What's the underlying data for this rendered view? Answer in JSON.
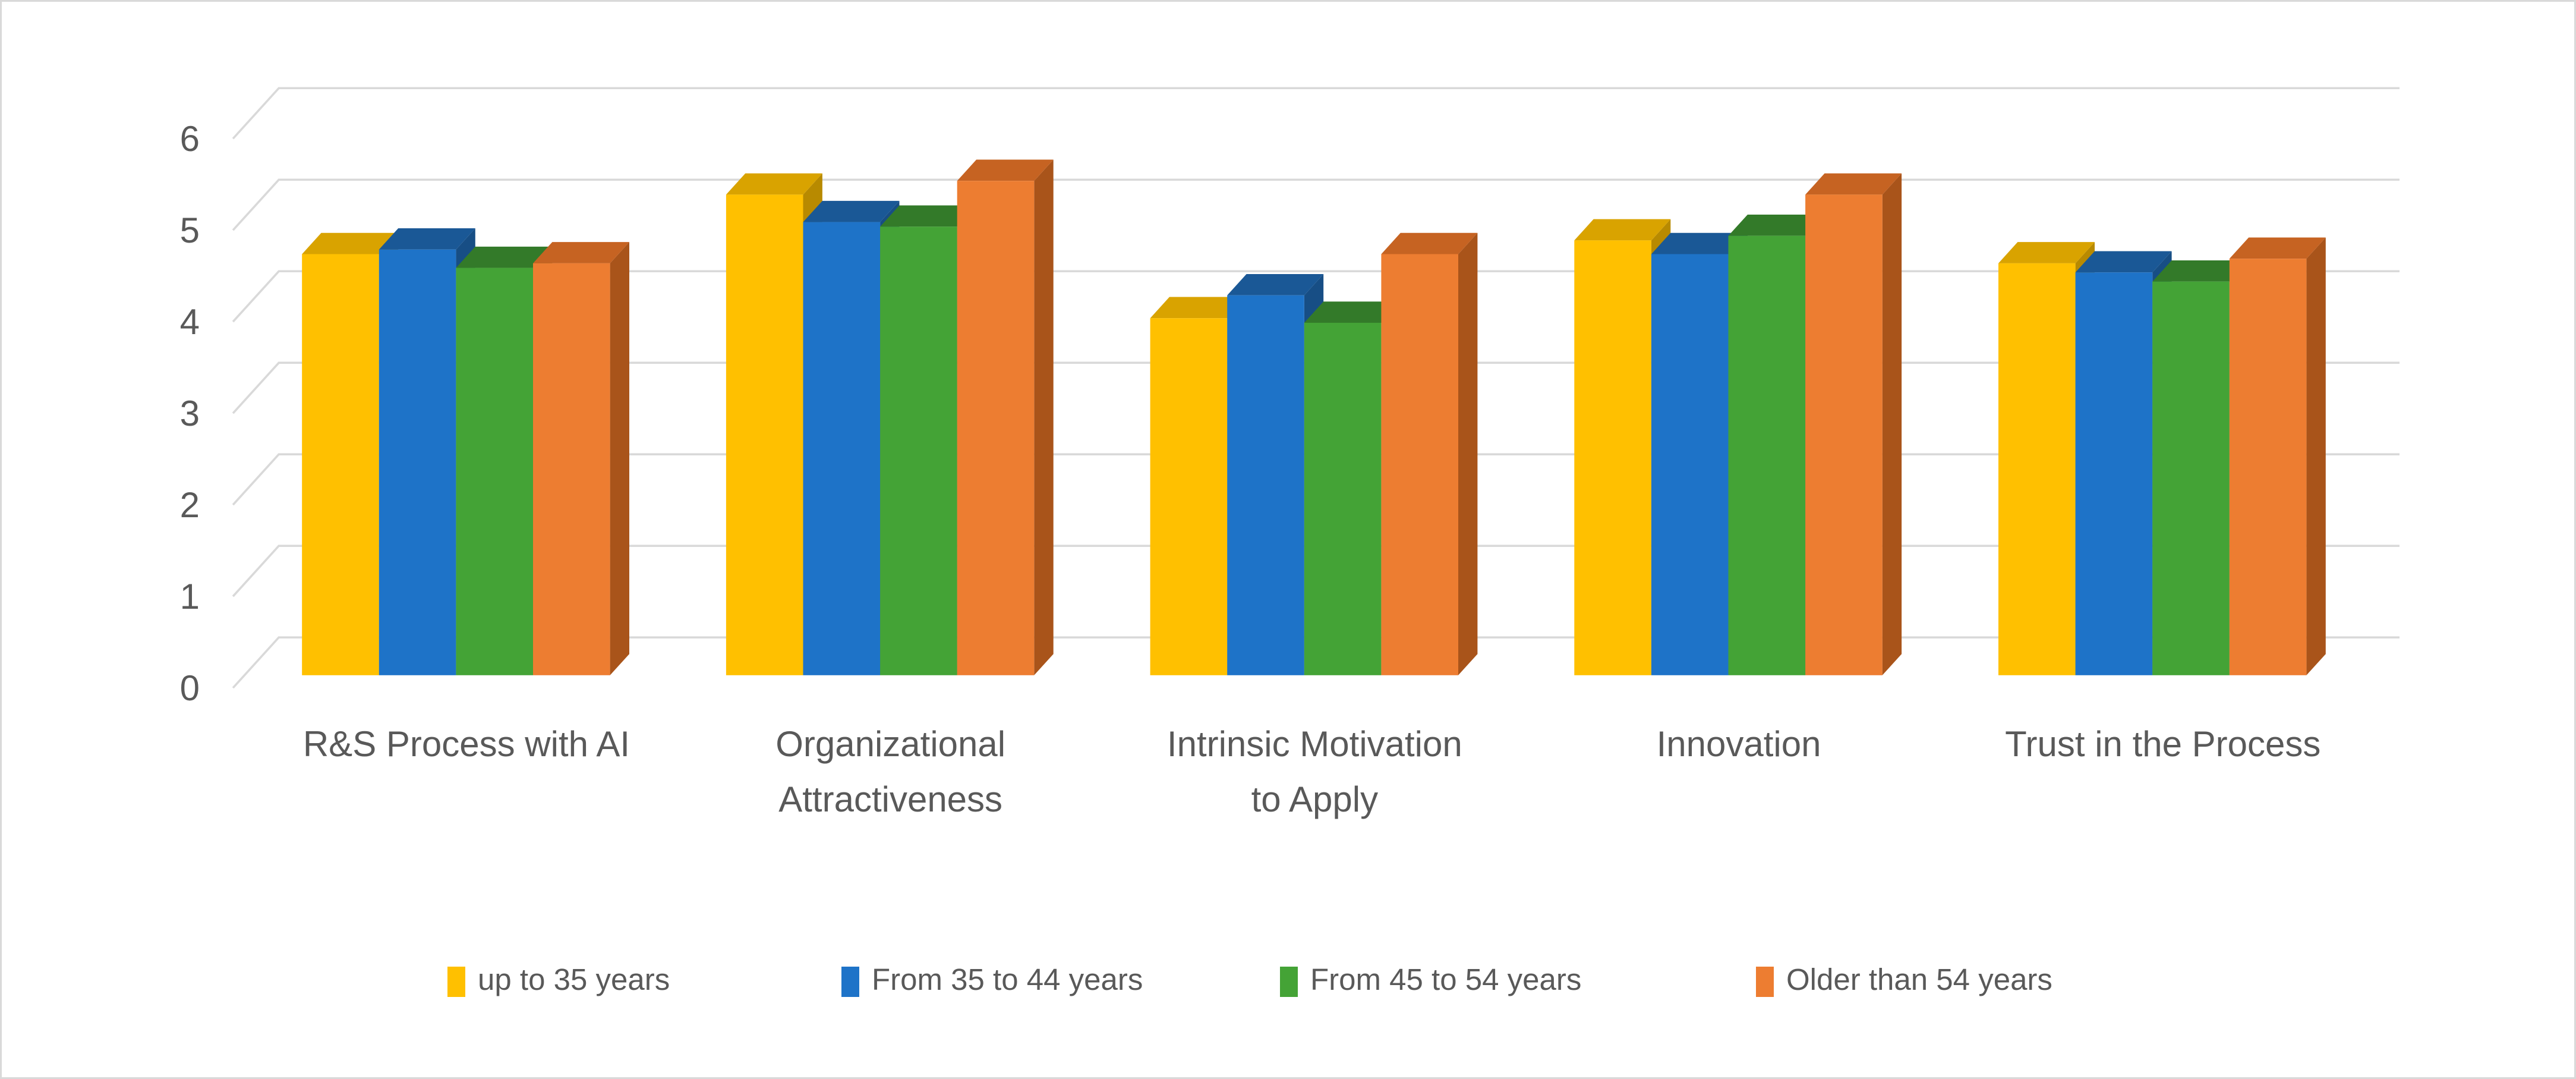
{
  "chart_data": {
    "type": "bar",
    "variant": "3d-clustered-column",
    "title": "",
    "categories": [
      "R&S Process with AI",
      "Organizational Attractiveness",
      "Intrinsic Motivation to Apply",
      "Innovation",
      "Trust in the Process"
    ],
    "category_lines": [
      [
        "R&S Process with AI"
      ],
      [
        "Organizational",
        "Attractiveness"
      ],
      [
        "Intrinsic Motivation",
        "to Apply"
      ],
      [
        "Innovation"
      ],
      [
        "Trust in the Process"
      ]
    ],
    "series": [
      {
        "name": "up to 35 years",
        "color": "#FFC000",
        "top_color": "#D9A300",
        "side_color": "#B88A00",
        "values": [
          4.6,
          5.25,
          3.9,
          4.75,
          4.5
        ]
      },
      {
        "name": "From 35 to 44 years",
        "color": "#1E73C8",
        "top_color": "#1A5896",
        "side_color": "#174E85",
        "values": [
          4.65,
          4.95,
          4.15,
          4.6,
          4.4
        ]
      },
      {
        "name": "From 45 to 54 years",
        "color": "#44A336",
        "top_color": "#337A29",
        "side_color": "#2C6A23",
        "values": [
          4.45,
          4.9,
          3.85,
          4.8,
          4.3
        ]
      },
      {
        "name": "Older than 54 years",
        "color": "#ED7D31",
        "top_color": "#C66322",
        "side_color": "#A9541A",
        "values": [
          4.5,
          5.4,
          4.6,
          5.25,
          4.55
        ]
      }
    ],
    "y_axis": {
      "min": 0,
      "max": 6,
      "step": 1,
      "tick_labels": [
        "0",
        "1",
        "2",
        "3",
        "4",
        "5",
        "6"
      ]
    },
    "xlabel": "",
    "ylabel": "",
    "legend_position": "bottom",
    "grid": true,
    "colors": {
      "grid": "#D9D9D9",
      "text": "#595959",
      "background": "#FFFFFF",
      "border": "#D9D9D9"
    }
  }
}
